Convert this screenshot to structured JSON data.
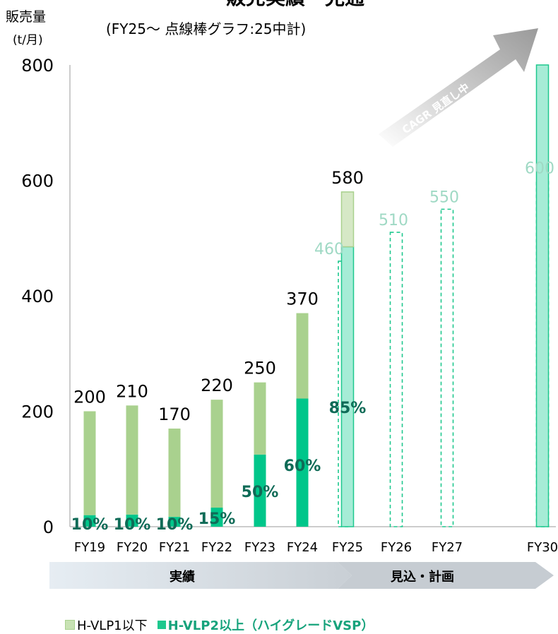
{
  "chart_data": {
    "type": "bar",
    "title_partial": "販売実績・見通",
    "subtitle": "(FY25～  点線棒グラフ:25中計)",
    "ylabel_line1": "販売量",
    "ylabel_line2": "(t/月)",
    "ylim": [
      0,
      800
    ],
    "yticks": [
      "0",
      "200",
      "400",
      "600",
      "800"
    ],
    "categories": [
      "FY19",
      "FY20",
      "FY21",
      "FY22",
      "FY23",
      "FY24",
      "FY25",
      "FY26",
      "FY27",
      "FY30"
    ],
    "series": [
      {
        "name": "H-VLP1以下",
        "values": [
          180,
          189,
          153,
          187,
          125,
          148,
          95,
          0,
          0,
          0
        ]
      },
      {
        "name": "H-VLP2以上（ハイグレードVSP）",
        "values": [
          20,
          21,
          17,
          33,
          125,
          222,
          485,
          0,
          0,
          800
        ]
      }
    ],
    "totals": [
      {
        "label": "200",
        "value": 200
      },
      {
        "label": "210",
        "value": 210
      },
      {
        "label": "170",
        "value": 170
      },
      {
        "label": "220",
        "value": 220
      },
      {
        "label": "250",
        "value": 250
      },
      {
        "label": "370",
        "value": 370
      },
      {
        "label": "580",
        "value": 580
      },
      null,
      null,
      null
    ],
    "share_labels": [
      "10%",
      "10%",
      "10%",
      "15%",
      "50%",
      "60%",
      "85%",
      null,
      null,
      null
    ],
    "plan_series": {
      "name": "25中計",
      "values": [
        null,
        null,
        null,
        null,
        null,
        null,
        460,
        510,
        550,
        600
      ],
      "labels": [
        null,
        null,
        null,
        null,
        null,
        null,
        "460",
        "510",
        "550",
        "600"
      ]
    },
    "arrow_annotation": "CAGR 見直し中",
    "phases": [
      {
        "label": "実績"
      },
      {
        "label": "見込・計画"
      }
    ],
    "legend": [
      {
        "label": "H-VLP1以下",
        "color": "#a9d18e"
      },
      {
        "label": "H-VLP2以上（ハイグレードVSP）",
        "color": "#1ec88e"
      }
    ],
    "colors": {
      "low_grade": "#a9d18e",
      "high_grade": "#00c68a",
      "fy25_low": "#d6e8c6",
      "fy25_high": "#a6ecd6",
      "plan": "#1ec88e",
      "plan_label": "#9fd9c4",
      "share_label": "#0f6b57"
    }
  }
}
